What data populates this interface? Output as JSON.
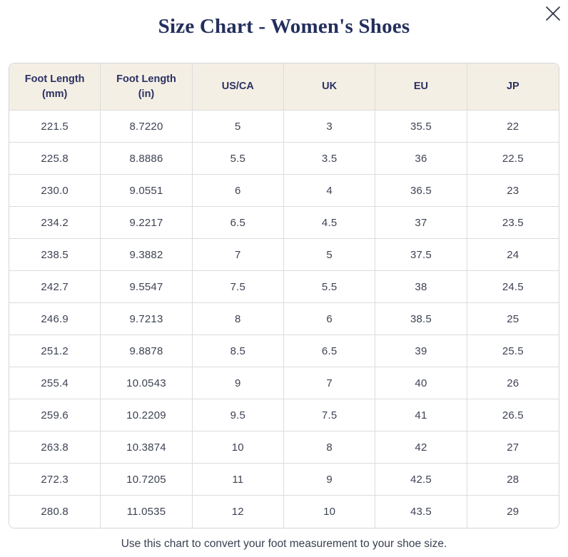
{
  "modal": {
    "title": "Size Chart - Women's Shoes",
    "footer": "Use this chart to convert your foot measurement to your shoe size."
  },
  "colors": {
    "title_text": "#232f5d",
    "header_bg": "#f4efe5",
    "header_text": "#2b3163",
    "cell_text": "#3d4354",
    "border": "#dcdcdc",
    "close_icon": "#2b3040"
  },
  "chart_data": {
    "type": "table",
    "columns": [
      [
        "Foot Length",
        "(mm)"
      ],
      [
        "Foot Length",
        "(in)"
      ],
      [
        "US/CA"
      ],
      [
        "UK"
      ],
      [
        "EU"
      ],
      [
        "JP"
      ]
    ],
    "rows": [
      [
        "221.5",
        "8.7220",
        "5",
        "3",
        "35.5",
        "22"
      ],
      [
        "225.8",
        "8.8886",
        "5.5",
        "3.5",
        "36",
        "22.5"
      ],
      [
        "230.0",
        "9.0551",
        "6",
        "4",
        "36.5",
        "23"
      ],
      [
        "234.2",
        "9.2217",
        "6.5",
        "4.5",
        "37",
        "23.5"
      ],
      [
        "238.5",
        "9.3882",
        "7",
        "5",
        "37.5",
        "24"
      ],
      [
        "242.7",
        "9.5547",
        "7.5",
        "5.5",
        "38",
        "24.5"
      ],
      [
        "246.9",
        "9.7213",
        "8",
        "6",
        "38.5",
        "25"
      ],
      [
        "251.2",
        "9.8878",
        "8.5",
        "6.5",
        "39",
        "25.5"
      ],
      [
        "255.4",
        "10.0543",
        "9",
        "7",
        "40",
        "26"
      ],
      [
        "259.6",
        "10.2209",
        "9.5",
        "7.5",
        "41",
        "26.5"
      ],
      [
        "263.8",
        "10.3874",
        "10",
        "8",
        "42",
        "27"
      ],
      [
        "272.3",
        "10.7205",
        "11",
        "9",
        "42.5",
        "28"
      ],
      [
        "280.8",
        "11.0535",
        "12",
        "10",
        "43.5",
        "29"
      ]
    ]
  }
}
